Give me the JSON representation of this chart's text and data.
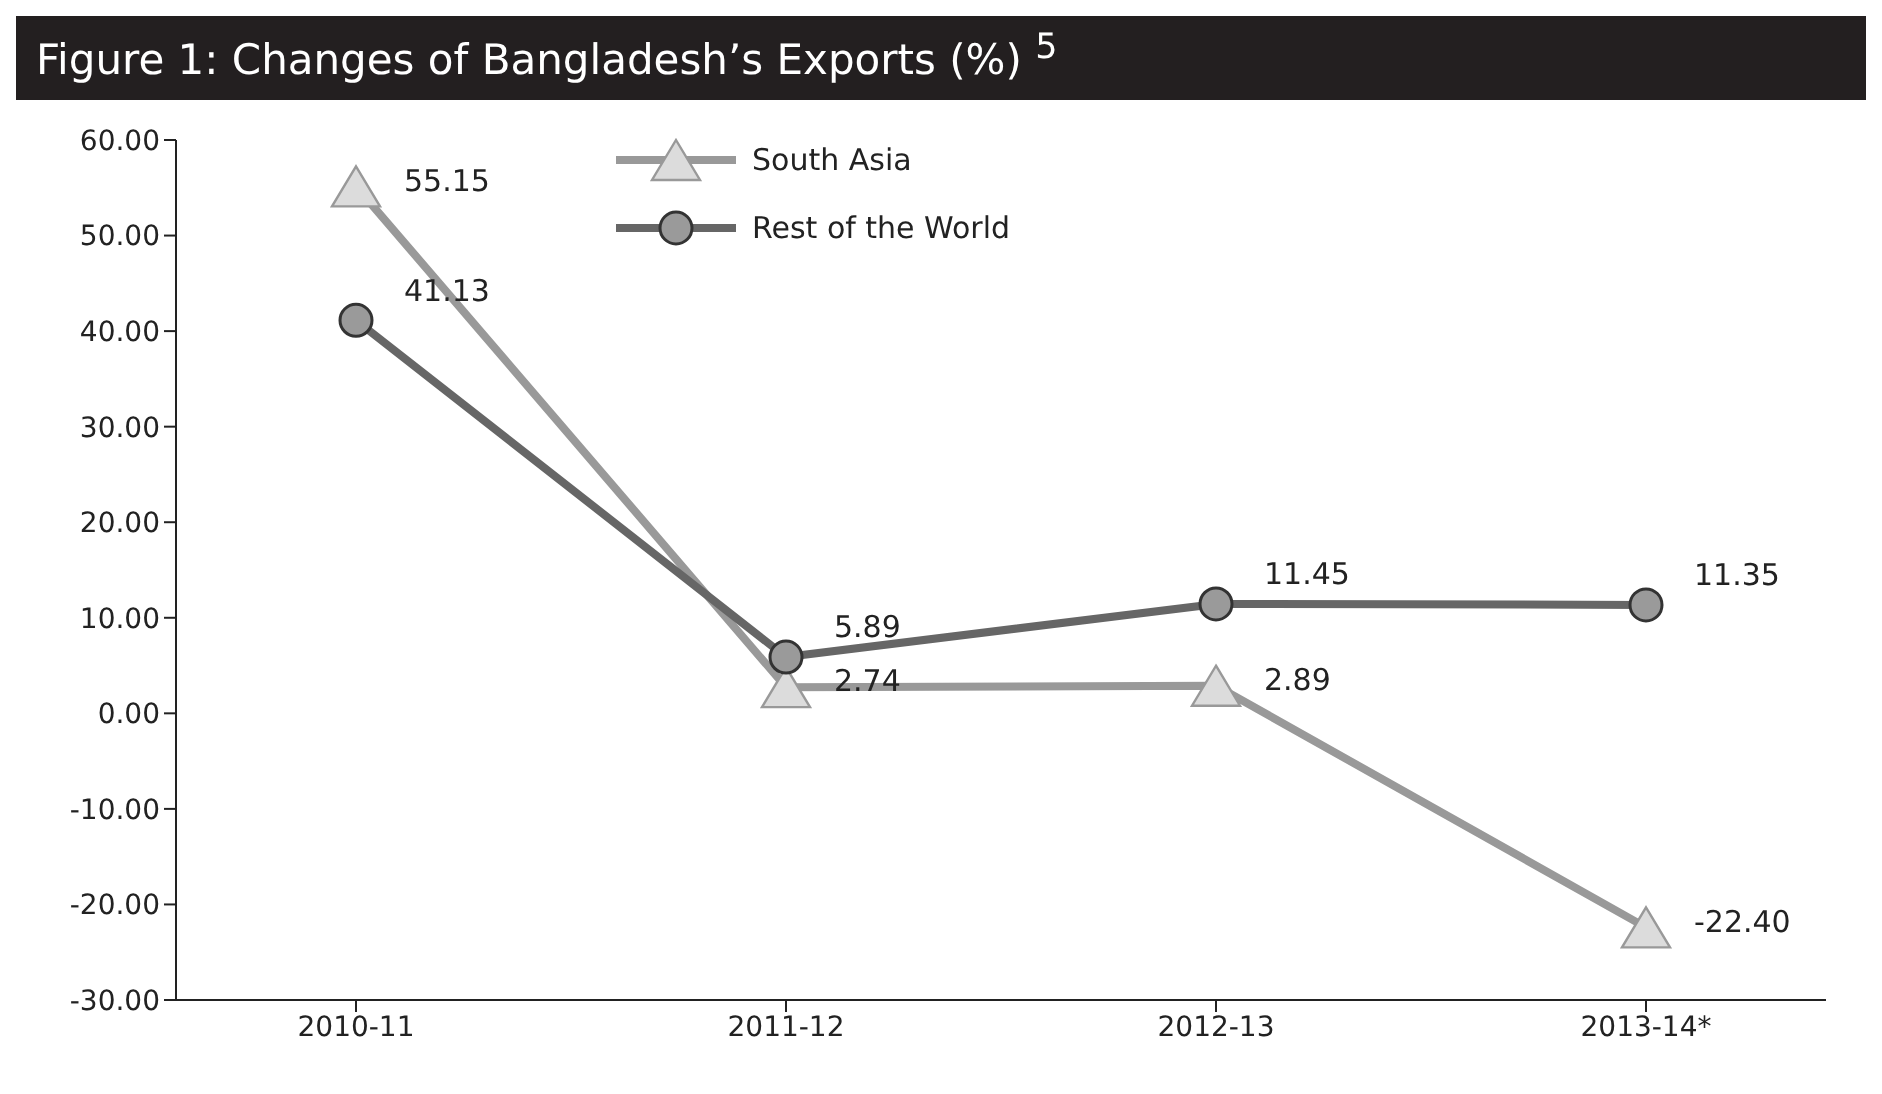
{
  "chart_data": {
    "type": "line",
    "title": "Figure 1: Changes of Bangladesh’s Exports (%) $^{5}$",
    "categories": [
      "2010-11",
      "2011-12",
      "2012-13",
      "2013-14*"
    ],
    "series": [
      {
        "name": "South Asia",
        "color": "#999999",
        "marker": "triangle",
        "values": [
          55.15,
          2.74,
          2.89,
          -22.4
        ],
        "value_labels": [
          "55.15",
          "2.74",
          "2.89",
          "-22.40"
        ]
      },
      {
        "name": "Rest of the World",
        "color": "#666666",
        "marker": "circle",
        "values": [
          41.13,
          5.89,
          11.45,
          11.35
        ],
        "value_labels": [
          "41.13",
          "5.89",
          "11.45",
          "11.35"
        ]
      }
    ],
    "ylim": [
      -30,
      60
    ],
    "yticks": [
      {
        "value": -30,
        "label": "-30.00"
      },
      {
        "value": -20,
        "label": "-20.00"
      },
      {
        "value": -10,
        "label": "-10.00"
      },
      {
        "value": 0,
        "label": "0.00"
      },
      {
        "value": 10,
        "label": "10.00"
      },
      {
        "value": 20,
        "label": "20.00"
      },
      {
        "value": 30,
        "label": "30.00"
      },
      {
        "value": 40,
        "label": "40.00"
      },
      {
        "value": 50,
        "label": "50.00"
      },
      {
        "value": 60,
        "label": "60.00"
      }
    ],
    "grid": false,
    "legend": "top",
    "line_style": "solid"
  }
}
